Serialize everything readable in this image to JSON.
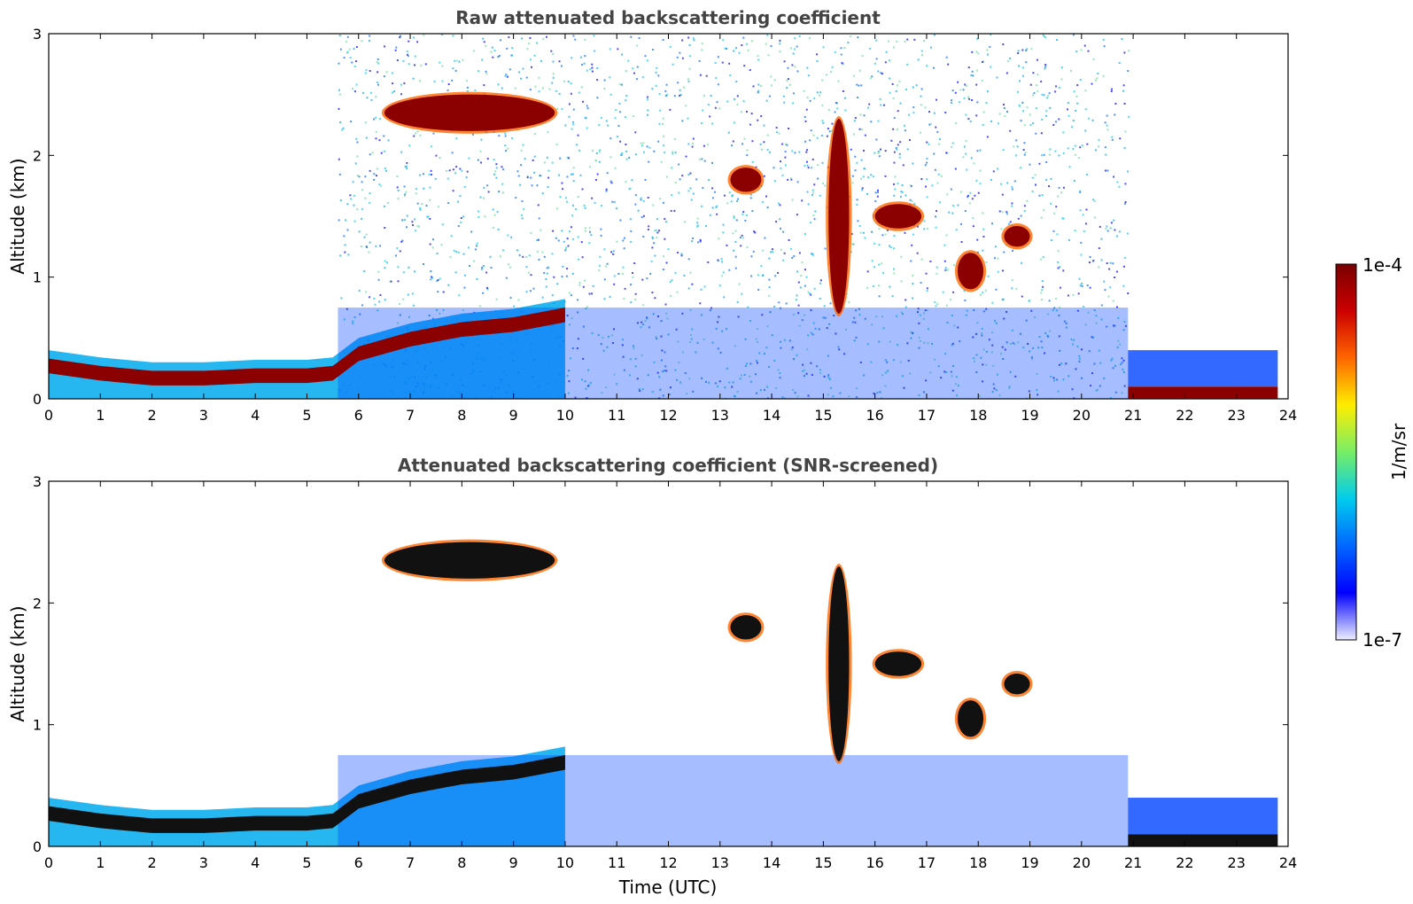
{
  "chart_data": [
    {
      "type": "heatmap",
      "title": "Raw attenuated backscattering coefficient",
      "xlabel": "",
      "ylabel": "Altitude (km)",
      "xlim": [
        0,
        24
      ],
      "ylim": [
        0,
        3
      ],
      "xticks": [
        "0",
        "1",
        "2",
        "3",
        "4",
        "5",
        "6",
        "7",
        "8",
        "9",
        "10",
        "11",
        "12",
        "13",
        "14",
        "15",
        "16",
        "17",
        "18",
        "19",
        "20",
        "21",
        "22",
        "23",
        "24"
      ],
      "yticks": [
        "0",
        "1",
        "2",
        "3"
      ],
      "features": [
        {
          "kind": "boundary_layer",
          "points": [
            [
              0,
              0.28
            ],
            [
              1,
              0.22
            ],
            [
              2,
              0.18
            ],
            [
              3,
              0.18
            ],
            [
              4,
              0.2
            ],
            [
              5,
              0.2
            ],
            [
              5.5,
              0.22
            ],
            [
              6,
              0.38
            ],
            [
              7,
              0.5
            ],
            [
              8,
              0.58
            ],
            [
              9,
              0.62
            ],
            [
              10,
              0.7
            ]
          ]
        },
        {
          "kind": "cloud",
          "t": [
            6.5,
            9.8
          ],
          "z": [
            2.2,
            2.5
          ]
        },
        {
          "kind": "cloud",
          "t": [
            13.2,
            13.8
          ],
          "z": [
            1.7,
            1.9
          ]
        },
        {
          "kind": "cloud",
          "t": [
            15.1,
            15.5
          ],
          "z": [
            0.7,
            2.3
          ]
        },
        {
          "kind": "cloud",
          "t": [
            16.0,
            16.9
          ],
          "z": [
            1.4,
            1.6
          ]
        },
        {
          "kind": "cloud",
          "t": [
            17.6,
            18.1
          ],
          "z": [
            0.9,
            1.2
          ]
        },
        {
          "kind": "cloud",
          "t": [
            18.5,
            19.0
          ],
          "z": [
            1.25,
            1.42
          ]
        },
        {
          "kind": "surface_layer",
          "t": [
            20.9,
            23.8
          ],
          "z": [
            0.0,
            0.1
          ]
        }
      ]
    },
    {
      "type": "heatmap",
      "title": "Attenuated backscattering coefficient (SNR-screened)",
      "xlabel": "Time (UTC)",
      "ylabel": "Altitude (km)",
      "xlim": [
        0,
        24
      ],
      "ylim": [
        0,
        3
      ],
      "xticks": [
        "0",
        "1",
        "2",
        "3",
        "4",
        "5",
        "6",
        "7",
        "8",
        "9",
        "10",
        "11",
        "12",
        "13",
        "14",
        "15",
        "16",
        "17",
        "18",
        "19",
        "20",
        "21",
        "22",
        "23",
        "24"
      ],
      "yticks": [
        "0",
        "1",
        "2",
        "3"
      ],
      "features": [
        {
          "kind": "boundary_layer",
          "points": [
            [
              0,
              0.28
            ],
            [
              1,
              0.22
            ],
            [
              2,
              0.18
            ],
            [
              3,
              0.18
            ],
            [
              4,
              0.2
            ],
            [
              5,
              0.2
            ],
            [
              5.5,
              0.22
            ],
            [
              6,
              0.38
            ],
            [
              7,
              0.5
            ],
            [
              8,
              0.58
            ],
            [
              9,
              0.62
            ],
            [
              10,
              0.7
            ]
          ]
        },
        {
          "kind": "cloud",
          "t": [
            6.5,
            9.8
          ],
          "z": [
            2.2,
            2.5
          ]
        },
        {
          "kind": "cloud",
          "t": [
            13.2,
            13.8
          ],
          "z": [
            1.7,
            1.9
          ]
        },
        {
          "kind": "cloud",
          "t": [
            15.1,
            15.5
          ],
          "z": [
            0.7,
            2.3
          ]
        },
        {
          "kind": "cloud",
          "t": [
            16.0,
            16.9
          ],
          "z": [
            1.4,
            1.6
          ]
        },
        {
          "kind": "cloud",
          "t": [
            17.6,
            18.1
          ],
          "z": [
            0.9,
            1.2
          ]
        },
        {
          "kind": "cloud",
          "t": [
            18.5,
            19.0
          ],
          "z": [
            1.25,
            1.42
          ]
        },
        {
          "kind": "surface_layer",
          "t": [
            20.9,
            23.8
          ],
          "z": [
            0.0,
            0.1
          ]
        }
      ]
    }
  ],
  "colorbar": {
    "label": "1/m/sr",
    "max_label": "1e-4",
    "min_label": "1e-7",
    "scale": "log",
    "colormap": [
      "#eeeeff",
      "#0000ff",
      "#0066ff",
      "#00ccee",
      "#77ee66",
      "#ffee00",
      "#ff6600",
      "#cc0000",
      "#7a0000"
    ]
  }
}
